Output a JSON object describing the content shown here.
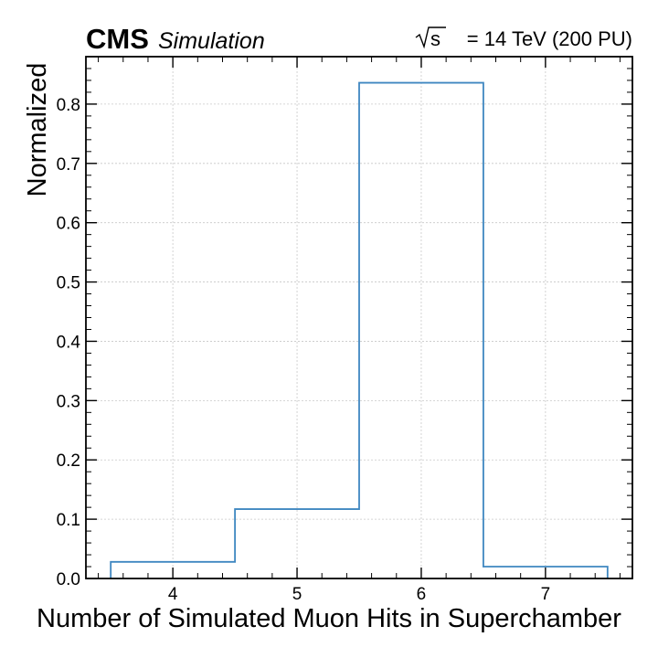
{
  "header": {
    "experiment": "CMS",
    "label": "Simulation",
    "energy_prefix": "s",
    "energy_suffix": "= 14 TeV (200 PU)"
  },
  "chart_data": {
    "type": "histogram",
    "xlabel": "Number of Simulated Muon Hits in Superchamber",
    "ylabel": "Normalized",
    "xlim": [
      3.3,
      7.7
    ],
    "ylim": [
      0,
      0.88
    ],
    "xticks": [
      4,
      5,
      6,
      7
    ],
    "yticks": [
      0.0,
      0.1,
      0.2,
      0.3,
      0.4,
      0.5,
      0.6,
      0.7,
      0.8
    ],
    "ytick_labels": [
      "0.0",
      "0.1",
      "0.2",
      "0.3",
      "0.4",
      "0.5",
      "0.6",
      "0.7",
      "0.8"
    ],
    "grid": true,
    "series_color": "#3f87c1",
    "bins": [
      {
        "x": 4,
        "low": 3.5,
        "high": 4.5,
        "value": 0.028
      },
      {
        "x": 5,
        "low": 4.5,
        "high": 5.5,
        "value": 0.117
      },
      {
        "x": 6,
        "low": 5.5,
        "high": 6.5,
        "value": 0.836
      },
      {
        "x": 7,
        "low": 6.5,
        "high": 7.5,
        "value": 0.02
      }
    ]
  }
}
